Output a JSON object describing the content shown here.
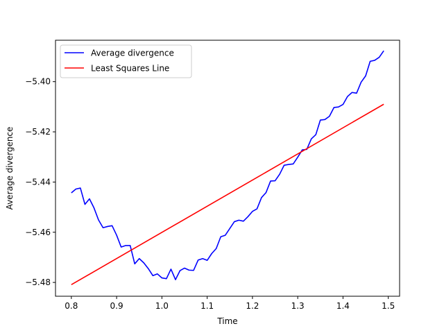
{
  "chart_data": {
    "type": "line",
    "xlabel": "Time",
    "ylabel": "Average divergence",
    "xlim": [
      0.765,
      1.525
    ],
    "ylim": [
      -5.4855,
      -5.3835
    ],
    "xticks": [
      0.8,
      0.9,
      1.0,
      1.1,
      1.2,
      1.3,
      1.4,
      1.5
    ],
    "xtick_labels": [
      "0.8",
      "0.9",
      "1.0",
      "1.1",
      "1.2",
      "1.3",
      "1.4",
      "1.5"
    ],
    "yticks": [
      -5.48,
      -5.46,
      -5.44,
      -5.42,
      -5.4
    ],
    "ytick_labels": [
      "−5.48",
      "−5.46",
      "−5.44",
      "−5.42",
      "−5.40"
    ],
    "grid": false,
    "legend": "upper-left",
    "series": [
      {
        "name": "Average divergence",
        "color": "#0000ff",
        "x": [
          0.8,
          0.81,
          0.82,
          0.83,
          0.84,
          0.85,
          0.86,
          0.87,
          0.88,
          0.89,
          0.9,
          0.91,
          0.92,
          0.93,
          0.94,
          0.95,
          0.96,
          0.97,
          0.98,
          0.99,
          1.0,
          1.01,
          1.02,
          1.03,
          1.04,
          1.05,
          1.06,
          1.07,
          1.08,
          1.09,
          1.1,
          1.11,
          1.12,
          1.13,
          1.14,
          1.15,
          1.16,
          1.17,
          1.18,
          1.19,
          1.2,
          1.21,
          1.22,
          1.23,
          1.24,
          1.25,
          1.26,
          1.27,
          1.28,
          1.29,
          1.3,
          1.31,
          1.32,
          1.33,
          1.34,
          1.35,
          1.36,
          1.37,
          1.38,
          1.39,
          1.4,
          1.41,
          1.42,
          1.43,
          1.44,
          1.45,
          1.46,
          1.47,
          1.48,
          1.49
        ],
        "values": [
          -5.4443,
          -5.4428,
          -5.4424,
          -5.4489,
          -5.4467,
          -5.4503,
          -5.4551,
          -5.4582,
          -5.4577,
          -5.4574,
          -5.4612,
          -5.4659,
          -5.4653,
          -5.4653,
          -5.4726,
          -5.4705,
          -5.4722,
          -5.4745,
          -5.4773,
          -5.4766,
          -5.4782,
          -5.4785,
          -5.4747,
          -5.4789,
          -5.4753,
          -5.4743,
          -5.4751,
          -5.4752,
          -5.4711,
          -5.4705,
          -5.4712,
          -5.4685,
          -5.4665,
          -5.4618,
          -5.4612,
          -5.4585,
          -5.4558,
          -5.4552,
          -5.4556,
          -5.4538,
          -5.4517,
          -5.4507,
          -5.4462,
          -5.4442,
          -5.4396,
          -5.4395,
          -5.4369,
          -5.4333,
          -5.433,
          -5.4328,
          -5.4301,
          -5.4272,
          -5.427,
          -5.4228,
          -5.4211,
          -5.4153,
          -5.4151,
          -5.4138,
          -5.4103,
          -5.4101,
          -5.4091,
          -5.4059,
          -5.4043,
          -5.4046,
          -5.4002,
          -5.3977,
          -5.3919,
          -5.3915,
          -5.3903,
          -5.3877
        ]
      },
      {
        "name": "Least Squares Line",
        "color": "#ff0000",
        "x": [
          0.8,
          1.49
        ],
        "values": [
          -5.4809,
          -5.409
        ]
      }
    ]
  }
}
